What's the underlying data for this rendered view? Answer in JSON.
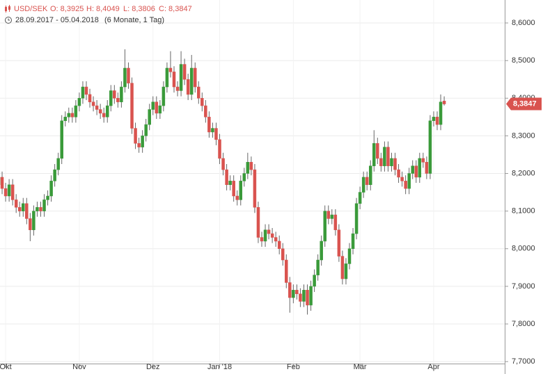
{
  "chart_data": {
    "type": "candlestick",
    "title": "USD/SEK",
    "header_values": [
      "O: 8,3925",
      "H: 8,4049",
      "L: 8,3806",
      "C: 8,3847"
    ],
    "subtitle": "28.09.2017 - 05.04.2018",
    "period": "(6 Monate, 1 Tag)",
    "up_color": "#3a9a3a",
    "down_color": "#d9534f",
    "grid": true,
    "ylim": [
      7.667,
      8.661
    ],
    "yticks": [
      {
        "value": 7.7,
        "label": "7,7000"
      },
      {
        "value": 7.8,
        "label": "7,8000"
      },
      {
        "value": 7.9,
        "label": "7,9000"
      },
      {
        "value": 8.0,
        "label": "8,0000"
      },
      {
        "value": 8.1,
        "label": "8,1000"
      },
      {
        "value": 8.2,
        "label": "8,2000"
      },
      {
        "value": 8.3,
        "label": "8,3000"
      },
      {
        "value": 8.4,
        "label": "8,4000"
      },
      {
        "value": 8.5,
        "label": "8,5000"
      },
      {
        "value": 8.6,
        "label": "8,6000"
      }
    ],
    "xticks": [
      {
        "value": 2,
        "label": "Okt"
      },
      {
        "value": 23,
        "label": "Nov"
      },
      {
        "value": 44,
        "label": "Dez"
      },
      {
        "value": 63,
        "label": "Jan '18"
      },
      {
        "value": 84,
        "label": "Feb"
      },
      {
        "value": 103,
        "label": "Mär"
      },
      {
        "value": 124,
        "label": "Apr"
      }
    ],
    "last_price": {
      "value": 8.3847,
      "label": "8,3847"
    },
    "open": [
      8.17,
      8.19,
      8.16,
      8.14,
      8.17,
      8.13,
      8.11,
      8.1,
      8.12,
      8.08,
      8.05,
      8.1,
      8.11,
      8.1,
      8.13,
      8.14,
      8.18,
      8.21,
      8.24,
      8.34,
      8.35,
      8.36,
      8.35,
      8.38,
      8.4,
      8.43,
      8.41,
      8.39,
      8.38,
      8.37,
      8.36,
      8.35,
      8.38,
      8.42,
      8.4,
      8.39,
      8.43,
      8.48,
      8.44,
      8.32,
      8.28,
      8.27,
      8.3,
      8.33,
      8.37,
      8.39,
      8.36,
      8.38,
      8.43,
      8.48,
      8.47,
      8.43,
      8.42,
      8.49,
      8.45,
      8.41,
      8.48,
      8.43,
      8.4,
      8.38,
      8.35,
      8.31,
      8.32,
      8.29,
      8.24,
      8.21,
      8.17,
      8.18,
      8.14,
      8.13,
      8.18,
      8.2,
      8.23,
      8.21,
      8.11,
      8.03,
      8.02,
      8.05,
      8.04,
      8.03,
      8.02,
      8.0,
      7.97,
      7.91,
      7.87,
      7.89,
      7.88,
      7.86,
      7.89,
      7.85,
      7.9,
      7.93,
      7.97,
      8.02,
      8.1,
      8.08,
      8.09,
      8.05,
      7.98,
      7.92,
      7.96,
      8.0,
      8.04,
      8.12,
      8.15,
      8.19,
      8.17,
      8.22,
      8.28,
      8.24,
      8.22,
      8.27,
      8.22,
      8.24,
      8.21,
      8.19,
      8.18,
      8.16,
      8.2,
      8.22,
      8.19,
      8.24,
      8.23,
      8.2,
      8.34,
      8.35,
      8.33,
      8.3925
    ],
    "high": [
      8.205,
      8.205,
      8.175,
      8.185,
      8.185,
      8.145,
      8.125,
      8.135,
      8.135,
      8.095,
      8.115,
      8.125,
      8.125,
      8.145,
      8.155,
      8.195,
      8.225,
      8.255,
      8.355,
      8.365,
      8.375,
      8.375,
      8.395,
      8.415,
      8.445,
      8.445,
      8.425,
      8.405,
      8.395,
      8.385,
      8.375,
      8.395,
      8.435,
      8.435,
      8.415,
      8.445,
      8.53,
      8.495,
      8.455,
      8.335,
      8.295,
      8.315,
      8.345,
      8.385,
      8.405,
      8.405,
      8.395,
      8.445,
      8.495,
      8.525,
      8.485,
      8.445,
      8.525,
      8.505,
      8.465,
      8.515,
      8.495,
      8.445,
      8.415,
      8.395,
      8.365,
      8.335,
      8.335,
      8.305,
      8.255,
      8.225,
      8.195,
      8.195,
      8.155,
      8.195,
      8.215,
      8.255,
      8.245,
      8.225,
      8.125,
      8.045,
      8.065,
      8.065,
      8.055,
      8.045,
      8.035,
      8.015,
      7.985,
      7.925,
      7.905,
      7.905,
      7.895,
      7.905,
      7.905,
      7.915,
      7.945,
      7.985,
      8.035,
      8.115,
      8.115,
      8.105,
      8.105,
      8.065,
      7.995,
      7.975,
      8.015,
      8.055,
      8.135,
      8.165,
      8.205,
      8.205,
      8.235,
      8.315,
      8.295,
      8.255,
      8.285,
      8.285,
      8.255,
      8.255,
      8.225,
      8.205,
      8.195,
      8.215,
      8.235,
      8.235,
      8.255,
      8.255,
      8.245,
      8.355,
      8.365,
      8.365,
      8.41,
      8.4049
    ],
    "low": [
      8.155,
      8.145,
      8.125,
      8.125,
      8.115,
      8.095,
      8.085,
      8.085,
      8.065,
      8.02,
      8.035,
      8.085,
      8.085,
      8.085,
      8.115,
      8.125,
      8.165,
      8.195,
      8.225,
      8.325,
      8.335,
      8.335,
      8.335,
      8.365,
      8.385,
      8.395,
      8.375,
      8.365,
      8.355,
      8.345,
      8.335,
      8.335,
      8.365,
      8.385,
      8.375,
      8.375,
      8.415,
      8.425,
      8.305,
      8.265,
      8.255,
      8.255,
      8.285,
      8.315,
      8.355,
      8.345,
      8.345,
      8.365,
      8.415,
      8.455,
      8.415,
      8.405,
      8.405,
      8.435,
      8.395,
      8.395,
      8.415,
      8.385,
      8.365,
      8.335,
      8.295,
      8.295,
      8.275,
      8.225,
      8.195,
      8.155,
      8.155,
      8.125,
      8.115,
      8.115,
      8.165,
      8.185,
      8.195,
      8.095,
      8.015,
      8.005,
      8.005,
      8.025,
      8.015,
      8.005,
      7.985,
      7.955,
      7.895,
      7.83,
      7.855,
      7.865,
      7.845,
      7.845,
      7.825,
      7.835,
      7.885,
      7.915,
      7.955,
      8.005,
      8.065,
      8.065,
      8.035,
      7.965,
      7.905,
      7.905,
      7.945,
      7.985,
      8.025,
      8.105,
      8.135,
      8.155,
      8.155,
      8.205,
      8.225,
      8.205,
      8.205,
      8.205,
      8.205,
      8.195,
      8.175,
      8.165,
      8.145,
      8.145,
      8.185,
      8.175,
      8.175,
      8.215,
      8.185,
      8.185,
      8.325,
      8.315,
      8.315,
      8.3806
    ],
    "close": [
      8.19,
      8.16,
      8.14,
      8.17,
      8.13,
      8.11,
      8.1,
      8.12,
      8.08,
      8.05,
      8.1,
      8.11,
      8.1,
      8.13,
      8.14,
      8.18,
      8.21,
      8.24,
      8.34,
      8.35,
      8.36,
      8.35,
      8.38,
      8.4,
      8.43,
      8.41,
      8.39,
      8.38,
      8.37,
      8.36,
      8.35,
      8.38,
      8.42,
      8.4,
      8.39,
      8.43,
      8.48,
      8.44,
      8.32,
      8.28,
      8.27,
      8.3,
      8.33,
      8.37,
      8.39,
      8.36,
      8.38,
      8.43,
      8.48,
      8.47,
      8.43,
      8.42,
      8.49,
      8.45,
      8.41,
      8.48,
      8.43,
      8.4,
      8.38,
      8.35,
      8.31,
      8.32,
      8.29,
      8.24,
      8.21,
      8.17,
      8.18,
      8.14,
      8.13,
      8.18,
      8.2,
      8.23,
      8.21,
      8.11,
      8.03,
      8.02,
      8.05,
      8.04,
      8.03,
      8.02,
      8.0,
      7.97,
      7.91,
      7.87,
      7.89,
      7.88,
      7.86,
      7.89,
      7.85,
      7.9,
      7.93,
      7.97,
      8.02,
      8.1,
      8.08,
      8.09,
      8.05,
      7.98,
      7.92,
      7.96,
      8.0,
      8.04,
      8.12,
      8.15,
      8.19,
      8.17,
      8.22,
      8.28,
      8.24,
      8.22,
      8.27,
      8.22,
      8.24,
      8.21,
      8.19,
      8.18,
      8.16,
      8.2,
      8.22,
      8.19,
      8.24,
      8.23,
      8.2,
      8.34,
      8.35,
      8.33,
      8.39,
      8.3847
    ]
  }
}
